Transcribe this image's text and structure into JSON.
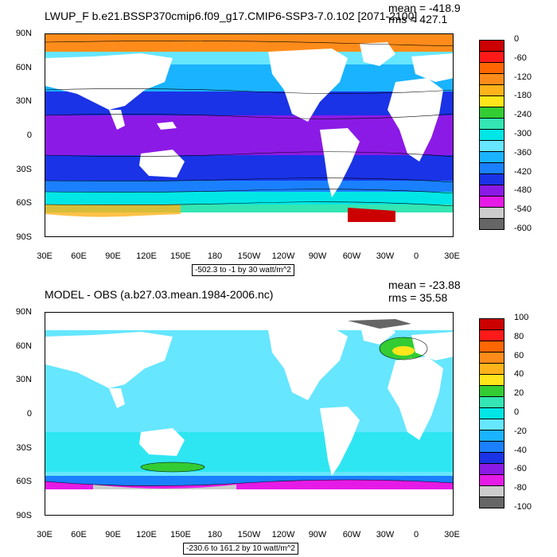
{
  "panels": [
    {
      "title": "LWUP_F b.e21.BSSP370cmip6.f09_g17.CMIP6-SSP3-7.0.102 [2071-2100]",
      "mean_label": "mean = -418.9",
      "rms_label": "rms = 427.1",
      "range_label": "-502.3 to -1 by 30 watt/m^2",
      "legend_labels": [
        "0",
        "-60",
        "-120",
        "-180",
        "-240",
        "-300",
        "-360",
        "-420",
        "-480",
        "-540",
        "-600"
      ],
      "colors": [
        "#cc0000",
        "#ff1a1a",
        "#ff6600",
        "#ff8c1a",
        "#ffb31a",
        "#ffe61a",
        "#33cc33",
        "#33e6b3",
        "#00e6e6",
        "#66e6ff",
        "#1ab3ff",
        "#1a80ff",
        "#1a33e6",
        "#8c1ae6",
        "#e61ae6",
        "#cccccc",
        "#666666"
      ]
    },
    {
      "title": "MODEL - OBS (a.b27.03.mean.1984-2006.nc)",
      "mean_label": "mean = -23.88",
      "rms_label": "rms = 35.58",
      "range_label": "-230.6 to 161.2 by 10 watt/m^2",
      "legend_labels": [
        "100",
        "80",
        "60",
        "40",
        "20",
        "0",
        "-20",
        "-40",
        "-60",
        "-80",
        "-100"
      ],
      "colors": [
        "#cc0000",
        "#ff1a1a",
        "#ff6600",
        "#ff8c1a",
        "#ffb31a",
        "#ffe61a",
        "#33cc33",
        "#33e6b3",
        "#00e6e6",
        "#66e6ff",
        "#1ab3ff",
        "#1a80ff",
        "#1a33e6",
        "#8c1ae6",
        "#e61ae6",
        "#cccccc",
        "#666666"
      ]
    }
  ],
  "axes": {
    "lat_labels": [
      "90N",
      "60N",
      "30N",
      "0",
      "30S",
      "60S",
      "90S"
    ],
    "lon_labels": [
      "30E",
      "60E",
      "90E",
      "120E",
      "150E",
      "180",
      "150W",
      "120W",
      "90W",
      "60W",
      "30W",
      "0",
      "30E"
    ]
  }
}
